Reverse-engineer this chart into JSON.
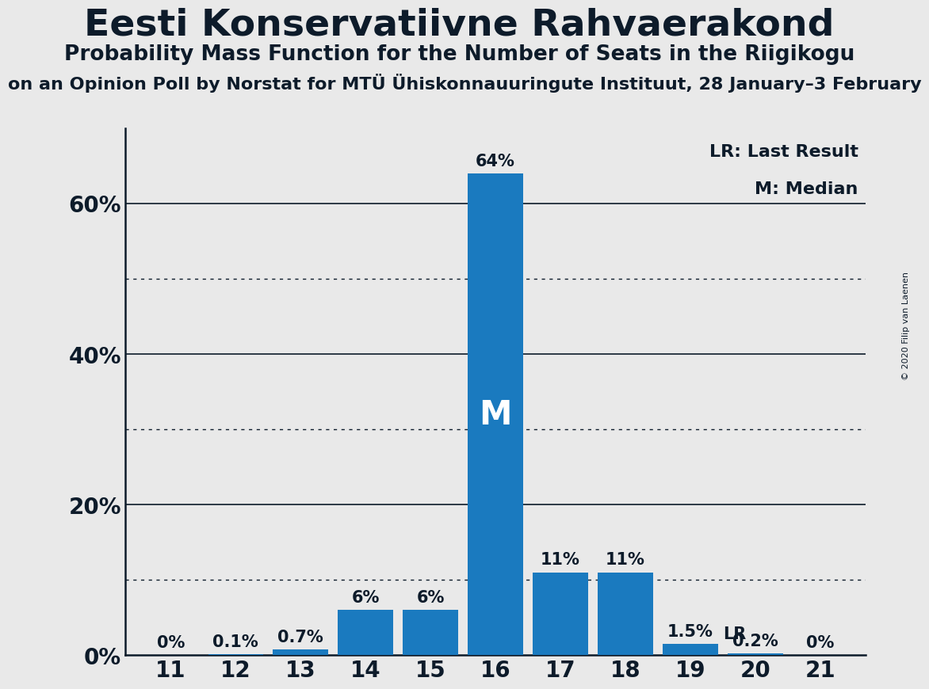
{
  "title": "Eesti Konservatiivne Rahvaerakond",
  "subtitle": "Probability Mass Function for the Number of Seats in the Riigikogu",
  "subsubtitle": "on an Opinion Poll by Norstat for MTÜ Ühiskonnauuringute Instituut, 28 January–3 February",
  "copyright": "© 2020 Filip van Laenen",
  "seats": [
    11,
    12,
    13,
    14,
    15,
    16,
    17,
    18,
    19,
    20,
    21
  ],
  "probabilities": [
    0.0,
    0.1,
    0.7,
    6.0,
    6.0,
    64.0,
    11.0,
    11.0,
    1.5,
    0.2,
    0.0
  ],
  "bar_labels": [
    "0%",
    "0.1%",
    "0.7%",
    "6%",
    "6%",
    "64%",
    "11%",
    "11%",
    "1.5%",
    "0.2%",
    "0%"
  ],
  "median_seat": 16,
  "lr_seat": 19,
  "yticks": [
    0,
    20,
    40,
    60
  ],
  "ytick_labels": [
    "0%",
    "20%",
    "40%",
    "60%"
  ],
  "dotted_lines": [
    10,
    30,
    50
  ],
  "ylim": [
    0,
    70
  ],
  "background_color": "#e9e9e9",
  "bar_main_color": "#1a7abf",
  "text_color": "#0d1b2a",
  "legend_lr": "LR: Last Result",
  "legend_m": "M: Median",
  "title_fontsize": 34,
  "subtitle_fontsize": 19,
  "subsubtitle_fontsize": 16,
  "label_fontsize": 15,
  "tick_fontsize": 20,
  "legend_fontsize": 16
}
